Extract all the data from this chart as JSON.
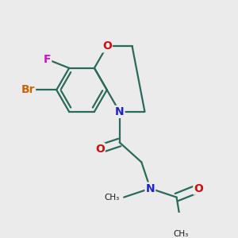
{
  "background_color": "#ebebeb",
  "atom_colors": {
    "C": "#1a1a1a",
    "N": "#2020cc",
    "O": "#cc1010",
    "F": "#cc10cc",
    "Br": "#cc6600"
  },
  "bond_color": "#2a6a5a",
  "bond_width": 1.6,
  "figsize": [
    3.0,
    3.0
  ],
  "dpi": 100
}
